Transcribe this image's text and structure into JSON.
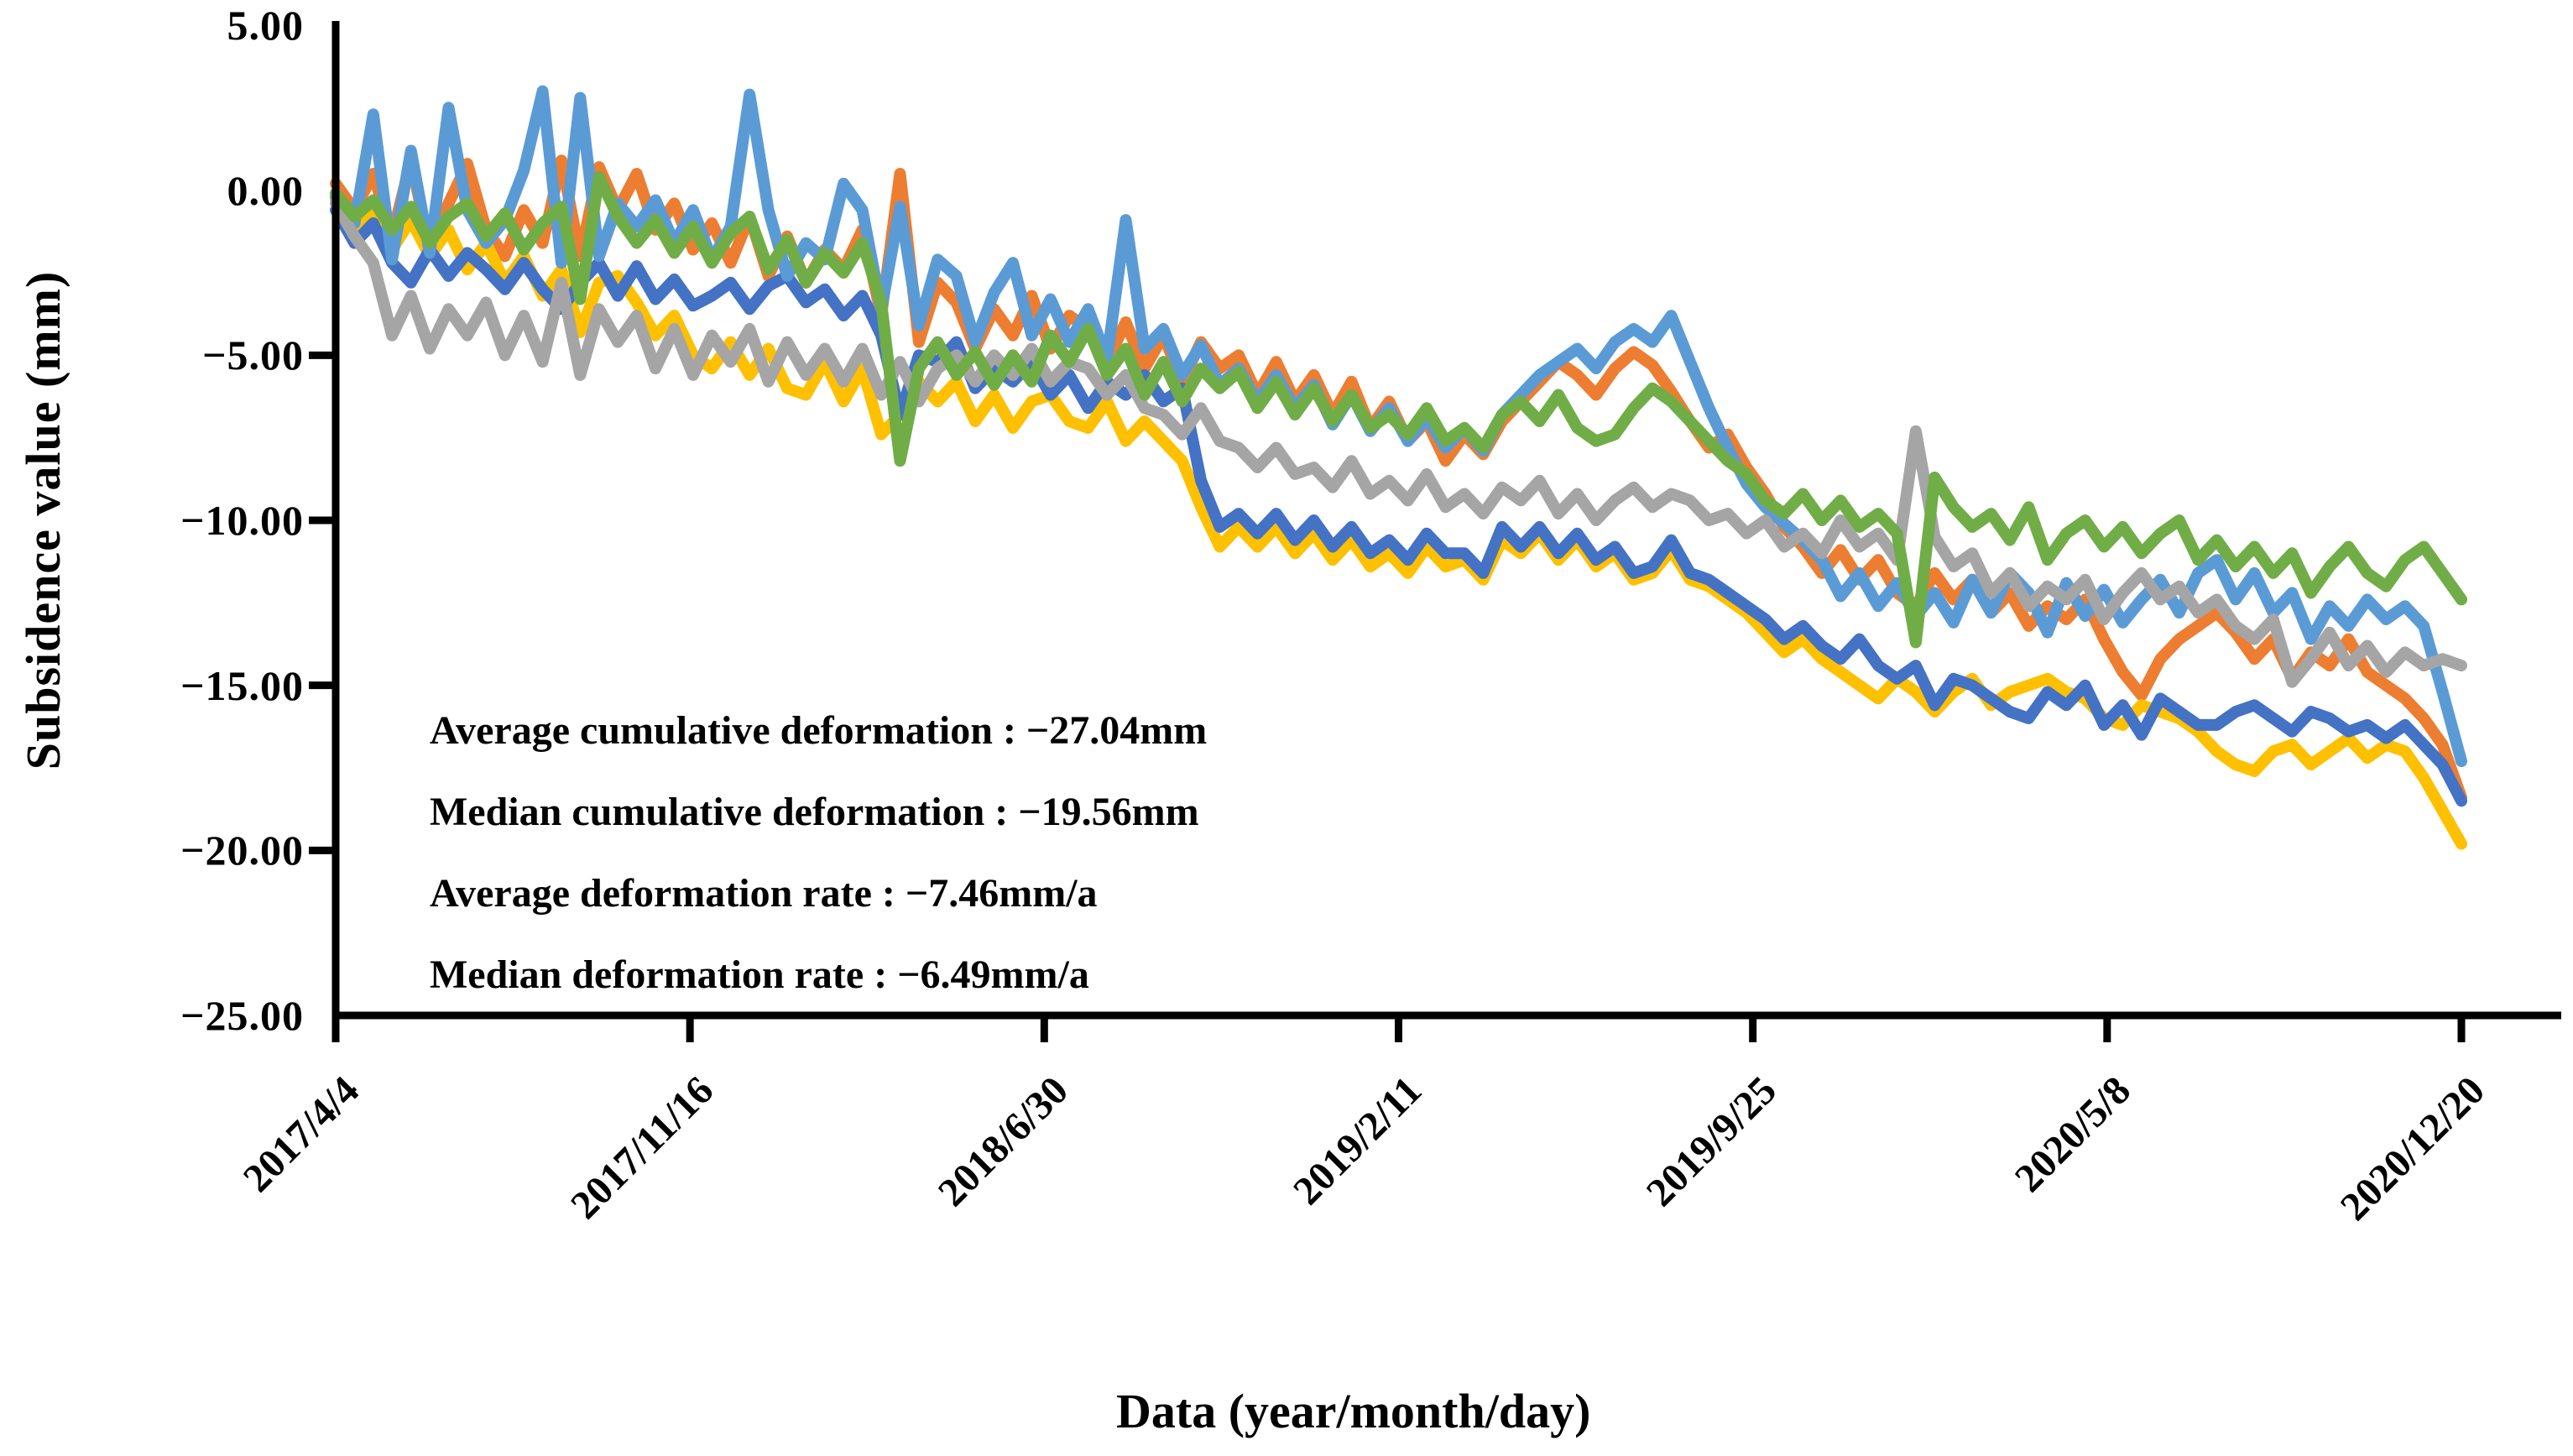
{
  "axis_titles": {
    "y": "Subsidence value (mm)",
    "x": "Data (year/month/day)"
  },
  "annotation": {
    "lines": [
      "Average cumulative deformation : −27.04mm",
      "Median cumulative deformation : −19.56mm",
      "Average deformation rate : −7.46mm/a",
      "Median deformation rate : −6.49mm/a"
    ]
  },
  "chart_data": {
    "type": "line",
    "title": "",
    "xlabel": "Data (year/month/day)",
    "ylabel": "Subsidence value (mm)",
    "ylim": [
      -25,
      5
    ],
    "grid": false,
    "legend": "none",
    "axis_color": "#000000",
    "x_axis": {
      "tick_labels": [
        "2017/4/4",
        "2017/11/16",
        "2018/6/30",
        "2019/2/11",
        "2019/9/25",
        "2020/5/8",
        "2020/12/20"
      ],
      "tick_label_rotation_deg": -45,
      "points_per_series": 114
    },
    "y_axis": {
      "tick_labels": [
        "5.00",
        "0.00",
        "−5.00",
        "−10.00",
        "−15.00",
        "−20.00",
        "−25.00"
      ],
      "tick_values": [
        5,
        0,
        -5,
        -10,
        -15,
        -20,
        -25
      ],
      "ticks_with_marks": [
        -5,
        -10,
        -15,
        -20
      ]
    },
    "series": [
      {
        "name": "orange",
        "color": "#ED7D31",
        "values": [
          0.2,
          -0.6,
          0.5,
          -1.4,
          0.9,
          -1.8,
          -0.4,
          0.8,
          -1.2,
          -2.0,
          -0.6,
          -1.6,
          0.9,
          -2.0,
          0.7,
          -0.6,
          0.5,
          -1.2,
          -0.4,
          -1.8,
          -1.0,
          -2.2,
          -0.8,
          -2.6,
          -1.4,
          -2.8,
          -1.8,
          -2.4,
          -1.2,
          -3.8,
          0.5,
          -4.6,
          -2.8,
          -3.4,
          -4.8,
          -3.6,
          -4.4,
          -3.2,
          -4.8,
          -3.8,
          -4.2,
          -5.2,
          -4.0,
          -5.4,
          -4.4,
          -5.8,
          -4.6,
          -5.4,
          -5.0,
          -6.2,
          -5.2,
          -6.4,
          -5.6,
          -6.8,
          -5.8,
          -7.2,
          -6.4,
          -7.6,
          -7.0,
          -8.2,
          -7.4,
          -8.0,
          -7.0,
          -6.4,
          -5.8,
          -5.2,
          -5.6,
          -6.2,
          -5.4,
          -4.9,
          -5.3,
          -6.1,
          -7.0,
          -7.8,
          -7.4,
          -8.4,
          -9.2,
          -10.2,
          -10.8,
          -11.6,
          -10.9,
          -11.8,
          -11.2,
          -12.2,
          -12.6,
          -11.6,
          -12.4,
          -11.8,
          -12.8,
          -12.2,
          -13.2,
          -12.6,
          -13.0,
          -12.4,
          -13.6,
          -14.6,
          -15.3,
          -14.2,
          -13.6,
          -13.2,
          -12.8,
          -13.4,
          -14.2,
          -13.6,
          -14.8,
          -14.0,
          -14.4,
          -13.6,
          -14.6,
          -15.0,
          -15.4,
          -16.0,
          -16.8,
          -18.4
        ]
      },
      {
        "name": "yellow",
        "color": "#FFC000",
        "values": [
          -0.3,
          -1.2,
          -0.6,
          -1.8,
          -0.9,
          -2.0,
          -1.2,
          -2.4,
          -1.6,
          -2.8,
          -2.0,
          -3.2,
          -2.4,
          -4.3,
          -2.8,
          -2.6,
          -3.4,
          -4.4,
          -3.8,
          -5.0,
          -5.4,
          -4.6,
          -5.6,
          -4.8,
          -6.0,
          -6.2,
          -5.2,
          -6.4,
          -5.4,
          -7.4,
          -6.8,
          -5.8,
          -6.4,
          -5.8,
          -7.0,
          -6.2,
          -7.2,
          -6.4,
          -6.2,
          -7.0,
          -7.2,
          -6.4,
          -7.6,
          -7.0,
          -7.6,
          -8.2,
          -9.6,
          -10.8,
          -10.2,
          -10.8,
          -10.2,
          -11.0,
          -10.4,
          -11.2,
          -10.6,
          -11.4,
          -11.0,
          -11.6,
          -10.8,
          -11.4,
          -11.2,
          -11.8,
          -10.6,
          -11.0,
          -10.4,
          -11.2,
          -10.6,
          -11.4,
          -11.0,
          -11.8,
          -11.6,
          -10.9,
          -11.8,
          -12.0,
          -12.4,
          -12.8,
          -13.4,
          -14.0,
          -13.6,
          -14.2,
          -14.6,
          -15.0,
          -15.4,
          -14.8,
          -15.2,
          -15.8,
          -15.2,
          -14.8,
          -15.6,
          -15.2,
          -15.0,
          -14.8,
          -15.2,
          -15.4,
          -16.0,
          -16.2,
          -15.6,
          -15.8,
          -16.0,
          -16.4,
          -17.0,
          -17.4,
          -17.6,
          -17.0,
          -16.8,
          -17.4,
          -17.0,
          -16.6,
          -17.2,
          -16.8,
          -17.0,
          -17.8,
          -18.8,
          -19.8
        ]
      },
      {
        "name": "dark-blue",
        "color": "#4472C4",
        "values": [
          -0.6,
          -1.6,
          -1.0,
          -2.2,
          -2.8,
          -1.8,
          -2.6,
          -1.9,
          -2.4,
          -3.0,
          -2.2,
          -3.0,
          -3.6,
          -2.8,
          -2.2,
          -3.2,
          -2.3,
          -3.3,
          -2.7,
          -3.5,
          -3.2,
          -2.8,
          -3.6,
          -2.9,
          -2.6,
          -3.4,
          -3.0,
          -3.8,
          -3.2,
          -4.4,
          -6.8,
          -5.0,
          -5.2,
          -4.6,
          -6.0,
          -5.4,
          -5.8,
          -5.2,
          -6.2,
          -5.6,
          -6.6,
          -5.8,
          -6.2,
          -5.6,
          -6.4,
          -6.0,
          -8.8,
          -10.2,
          -9.8,
          -10.4,
          -9.8,
          -10.6,
          -10.0,
          -10.8,
          -10.2,
          -11.0,
          -10.6,
          -11.2,
          -10.4,
          -11.0,
          -11.0,
          -11.6,
          -10.2,
          -10.8,
          -10.2,
          -11.0,
          -10.4,
          -11.2,
          -10.8,
          -11.6,
          -11.4,
          -10.6,
          -11.6,
          -11.8,
          -12.2,
          -12.6,
          -13.0,
          -13.6,
          -13.2,
          -13.8,
          -14.2,
          -13.6,
          -14.4,
          -14.8,
          -14.4,
          -15.6,
          -14.8,
          -15.0,
          -15.4,
          -15.8,
          -16.0,
          -15.2,
          -15.6,
          -15.0,
          -16.2,
          -15.6,
          -16.5,
          -15.4,
          -15.8,
          -16.2,
          -16.2,
          -15.8,
          -15.6,
          -16.0,
          -16.4,
          -15.8,
          -16.0,
          -16.4,
          -16.2,
          -16.6,
          -16.2,
          -16.8,
          -17.4,
          -18.5
        ]
      },
      {
        "name": "light-blue",
        "color": "#5B9BD5",
        "values": [
          -0.2,
          -1.0,
          2.3,
          -2.1,
          1.2,
          -1.9,
          2.5,
          -0.6,
          -1.6,
          -0.9,
          0.6,
          3.0,
          -2.2,
          2.8,
          -2.0,
          -0.4,
          -1.1,
          -0.3,
          -1.6,
          -0.6,
          -2.1,
          -1.1,
          2.9,
          -0.6,
          -2.6,
          -1.6,
          -2.1,
          0.2,
          -0.6,
          -3.6,
          -0.5,
          -4.1,
          -2.1,
          -2.6,
          -4.6,
          -3.1,
          -2.2,
          -4.4,
          -3.3,
          -4.6,
          -3.6,
          -5.1,
          -0.9,
          -4.8,
          -4.2,
          -5.6,
          -4.7,
          -5.9,
          -5.4,
          -6.4,
          -5.6,
          -6.6,
          -5.9,
          -7.1,
          -6.2,
          -7.3,
          -6.6,
          -7.6,
          -6.9,
          -7.8,
          -7.2,
          -7.9,
          -6.8,
          -6.2,
          -5.6,
          -5.2,
          -4.8,
          -5.4,
          -4.6,
          -4.2,
          -4.6,
          -3.8,
          -5.2,
          -6.6,
          -7.8,
          -8.9,
          -9.6,
          -10.1,
          -10.6,
          -11.2,
          -12.3,
          -11.6,
          -12.6,
          -11.9,
          -12.9,
          -12.2,
          -13.1,
          -11.8,
          -12.8,
          -11.6,
          -12.2,
          -13.4,
          -11.9,
          -12.9,
          -12.1,
          -13.1,
          -12.4,
          -11.8,
          -12.8,
          -11.6,
          -11.2,
          -12.4,
          -11.6,
          -12.8,
          -12.2,
          -13.6,
          -12.6,
          -13.2,
          -12.4,
          -13.0,
          -12.6,
          -13.2,
          -15.2,
          -17.3
        ]
      },
      {
        "name": "gray",
        "color": "#A5A5A5",
        "values": [
          -0.4,
          -1.4,
          -2.2,
          -4.4,
          -3.2,
          -4.8,
          -3.6,
          -4.4,
          -3.4,
          -5.0,
          -3.8,
          -5.2,
          -2.8,
          -5.6,
          -3.6,
          -4.6,
          -3.8,
          -5.4,
          -4.2,
          -5.6,
          -4.4,
          -5.2,
          -4.2,
          -5.8,
          -4.6,
          -5.6,
          -4.8,
          -5.8,
          -4.8,
          -6.2,
          -5.2,
          -6.4,
          -5.4,
          -5.0,
          -5.8,
          -5.0,
          -5.6,
          -4.8,
          -5.8,
          -5.2,
          -5.4,
          -6.2,
          -5.6,
          -6.6,
          -6.8,
          -7.4,
          -6.6,
          -7.6,
          -7.8,
          -8.4,
          -7.8,
          -8.6,
          -8.4,
          -9.0,
          -8.2,
          -9.2,
          -8.8,
          -9.4,
          -8.6,
          -9.6,
          -9.2,
          -9.8,
          -9.0,
          -9.4,
          -8.8,
          -9.8,
          -9.2,
          -10.0,
          -9.4,
          -9.0,
          -9.6,
          -9.2,
          -9.4,
          -10.0,
          -9.8,
          -10.4,
          -10.0,
          -10.8,
          -10.4,
          -11.0,
          -10.0,
          -10.8,
          -10.4,
          -11.2,
          -7.3,
          -10.5,
          -11.4,
          -11.0,
          -12.2,
          -11.6,
          -12.6,
          -12.0,
          -12.4,
          -11.8,
          -13.0,
          -12.2,
          -11.6,
          -12.4,
          -12.0,
          -12.8,
          -12.4,
          -13.2,
          -13.6,
          -13.0,
          -14.9,
          -14.2,
          -13.4,
          -14.4,
          -13.8,
          -14.6,
          -14.0,
          -14.4,
          -14.2,
          -14.4
        ]
      },
      {
        "name": "green",
        "color": "#70AD47",
        "values": [
          -0.1,
          -0.8,
          -0.3,
          -1.2,
          -0.5,
          -1.6,
          -0.8,
          -0.4,
          -1.4,
          -0.7,
          -1.8,
          -1.0,
          -0.5,
          -3.3,
          0.4,
          -0.8,
          -1.6,
          -0.9,
          -1.9,
          -1.1,
          -2.2,
          -1.3,
          -0.8,
          -2.4,
          -1.5,
          -2.8,
          -1.9,
          -2.5,
          -1.6,
          -3.4,
          -8.2,
          -5.4,
          -4.6,
          -5.6,
          -4.9,
          -5.9,
          -5.0,
          -5.8,
          -4.4,
          -5.2,
          -4.2,
          -5.6,
          -4.8,
          -6.2,
          -5.2,
          -6.4,
          -5.4,
          -6.0,
          -5.5,
          -6.6,
          -5.8,
          -6.8,
          -6.0,
          -7.0,
          -6.2,
          -7.2,
          -6.8,
          -7.4,
          -6.6,
          -7.6,
          -7.2,
          -7.8,
          -6.8,
          -6.4,
          -7.0,
          -6.2,
          -7.2,
          -7.6,
          -7.4,
          -6.6,
          -6.0,
          -6.4,
          -7.0,
          -7.6,
          -8.2,
          -8.6,
          -9.4,
          -9.8,
          -9.2,
          -10.0,
          -9.4,
          -10.2,
          -9.8,
          -10.4,
          -13.7,
          -8.7,
          -9.6,
          -10.2,
          -9.8,
          -10.6,
          -9.6,
          -11.2,
          -10.4,
          -10.0,
          -10.8,
          -10.2,
          -11.0,
          -10.4,
          -10.0,
          -11.2,
          -10.6,
          -11.4,
          -10.8,
          -11.6,
          -11.0,
          -12.2,
          -11.4,
          -10.8,
          -11.6,
          -12.0,
          -11.2,
          -10.8,
          -11.6,
          -12.4
        ]
      }
    ],
    "layout": {
      "plot_left": 400,
      "plot_right": 2933,
      "axis_right_overhang": 3052,
      "plot_top": 30,
      "plot_bottom": 1210,
      "line_width": 14,
      "axis_width": 9,
      "tick_length": 32
    }
  }
}
